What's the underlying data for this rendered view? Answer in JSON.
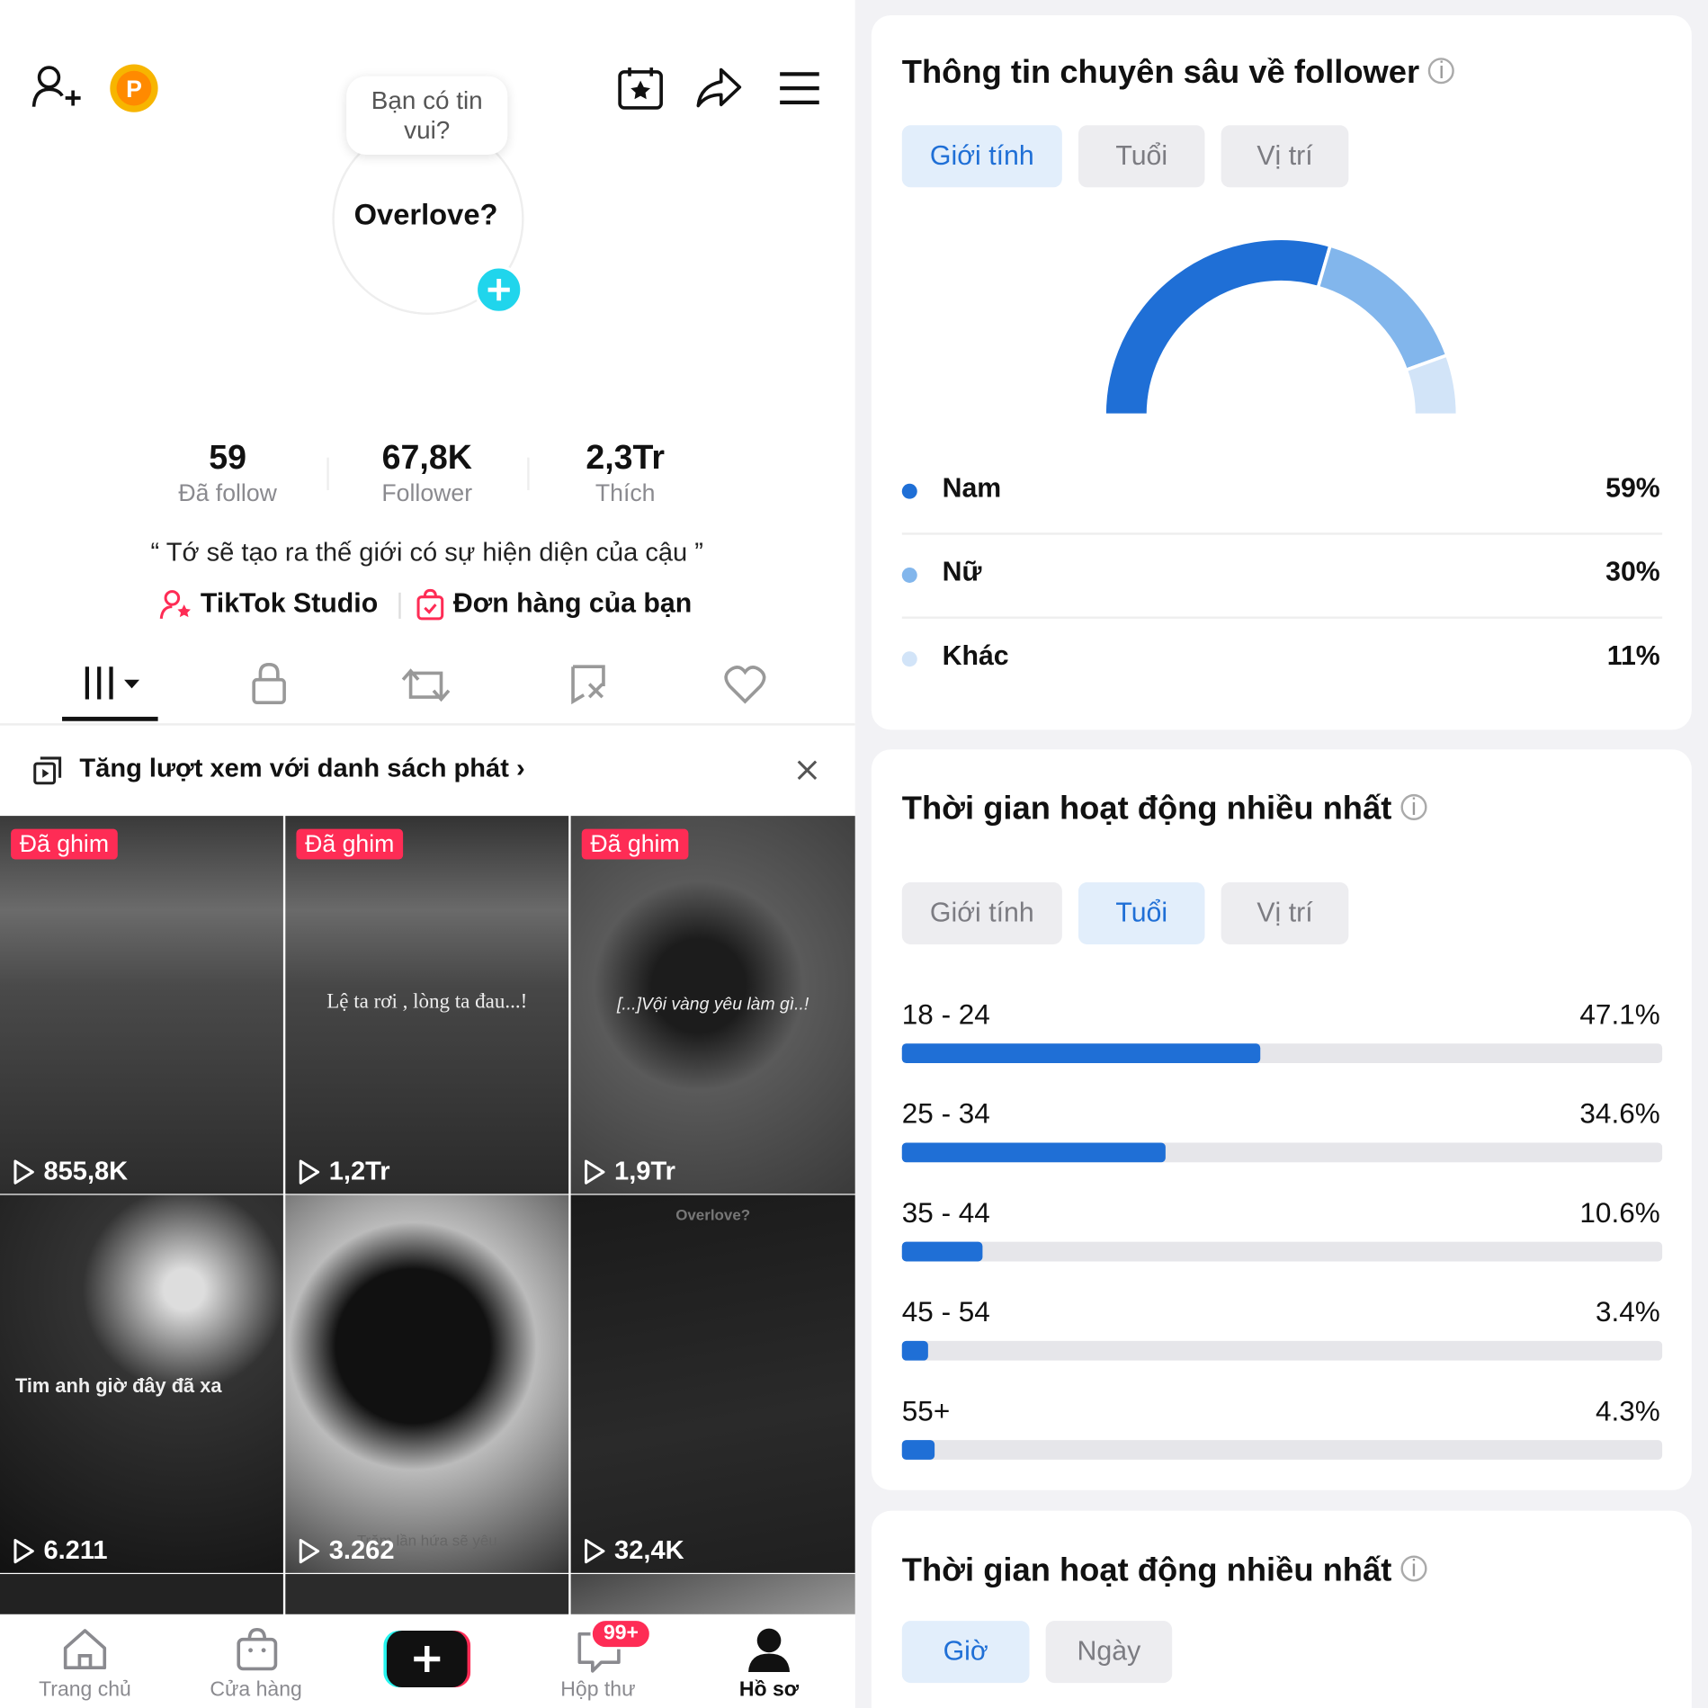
{
  "profile": {
    "speech_bubble": "Bạn có tin vui?",
    "name": "Overlove?",
    "stats": [
      {
        "value": "59",
        "label": "Đã follow"
      },
      {
        "value": "67,8K",
        "label": "Follower"
      },
      {
        "value": "2,3Tr",
        "label": "Thích"
      }
    ],
    "bio": "“ Tớ sẽ tạo ra thế giới có sự hiện diện của cậu ”",
    "links": [
      "TikTok Studio",
      "Đơn hàng của bạn"
    ],
    "playlist_banner": "Tăng lượt xem với danh sách phát",
    "videos": [
      {
        "pinned": "Đã ghim",
        "views": "855,8K"
      },
      {
        "pinned": "Đã ghim",
        "caption": "Lệ ta rơi , lòng ta đau...!",
        "views": "1,2Tr"
      },
      {
        "pinned": "Đã ghim",
        "caption": "[...]Vội vàng yêu làm gì..!",
        "views": "1,9Tr"
      },
      {
        "caption": "Tim anh giờ đây đã xa",
        "views": "6.211"
      },
      {
        "caption": "Trăm lần hứa sẽ yêu",
        "views": "3.262"
      },
      {
        "caption": "Overlove?",
        "views": "32,4K"
      }
    ]
  },
  "nav": {
    "items": [
      "Trang chủ",
      "Cửa hàng",
      "Hộp thư",
      "Hồ sơ"
    ],
    "badge": "99+"
  },
  "follower_insights": {
    "title": "Thông tin chuyên sâu về follower",
    "tabs": [
      "Giới tính",
      "Tuổi",
      "Vị trí"
    ],
    "gender": [
      {
        "name": "Nam",
        "value": 59,
        "label": "59%",
        "color": "#1f6fd6"
      },
      {
        "name": "Nữ",
        "value": 30,
        "label": "30%",
        "color": "#82b6ec"
      },
      {
        "name": "Khác",
        "value": 11,
        "label": "11%",
        "color": "#d2e4f8"
      }
    ]
  },
  "active_time": {
    "title": "Thời gian hoạt động nhiều nhất",
    "tabs": [
      "Giới tính",
      "Tuổi",
      "Vị trí"
    ],
    "color": "#1f6fd6",
    "xlim": [
      0,
      100
    ],
    "age": [
      {
        "name": "18 - 24",
        "value": 47.1,
        "label": "47.1%"
      },
      {
        "name": "25 - 34",
        "value": 34.6,
        "label": "34.6%"
      },
      {
        "name": "35 - 44",
        "value": 10.6,
        "label": "10.6%"
      },
      {
        "name": "45 - 54",
        "value": 3.4,
        "label": "3.4%"
      },
      {
        "name": "55+",
        "value": 4.3,
        "label": "4.3%"
      }
    ]
  },
  "active_time_2": {
    "title": "Thời gian hoạt động nhiều nhất",
    "tabs": [
      "Giờ",
      "Ngày"
    ]
  }
}
